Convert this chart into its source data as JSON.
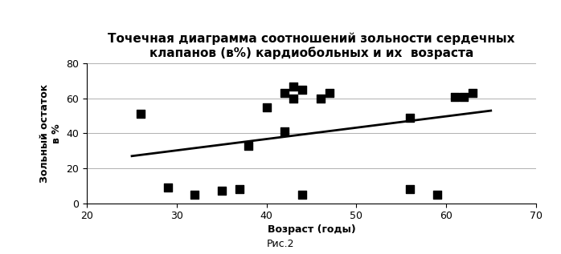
{
  "title": "Точечная диаграмма соотношений зольности сердечных\nклапанов (в%) кардиобольных и их  возраста",
  "xlabel": "Возраст (годы)",
  "ylabel_top": "Зольный остаток",
  "ylabel_bottom": "в %",
  "caption": "Рис.2",
  "xlim": [
    20,
    70
  ],
  "ylim": [
    0,
    80
  ],
  "xticks": [
    20,
    30,
    40,
    50,
    60,
    70
  ],
  "yticks": [
    0,
    20,
    40,
    60,
    80
  ],
  "scatter_x": [
    26,
    29,
    32,
    35,
    37,
    38,
    40,
    42,
    42,
    43,
    43,
    44,
    44,
    46,
    47,
    56,
    56,
    59,
    61,
    62,
    63
  ],
  "scatter_y": [
    51,
    9,
    5,
    7,
    8,
    33,
    55,
    63,
    41,
    67,
    60,
    65,
    5,
    60,
    63,
    49,
    8,
    5,
    61,
    61,
    63
  ],
  "trend_x": [
    25,
    65
  ],
  "trend_y": [
    27,
    53
  ],
  "marker_color": "#000000",
  "line_color": "#000000",
  "bg_color": "#ffffff",
  "grid_color": "#b0b0b0",
  "marker_size": 45,
  "title_fontsize": 11,
  "label_fontsize": 9,
  "tick_fontsize": 9,
  "caption_fontsize": 9
}
